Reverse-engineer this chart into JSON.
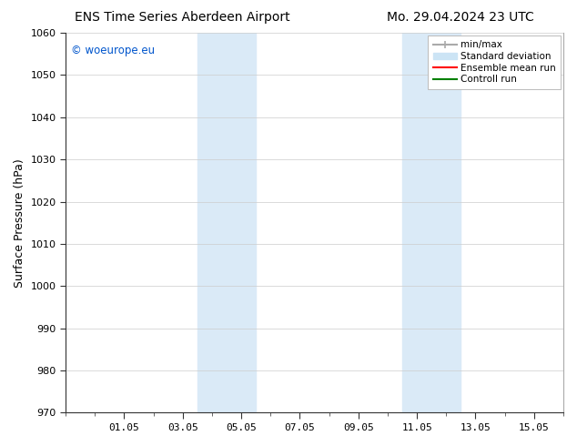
{
  "title_left": "ENS Time Series Aberdeen Airport",
  "title_right": "Mo. 29.04.2024 23 UTC",
  "ylabel": "Surface Pressure (hPa)",
  "ylim": [
    970,
    1060
  ],
  "yticks": [
    970,
    980,
    990,
    1000,
    1010,
    1020,
    1030,
    1040,
    1050,
    1060
  ],
  "xtick_labels": [
    "01.05",
    "03.05",
    "05.05",
    "07.05",
    "09.05",
    "11.05",
    "13.05",
    "15.05"
  ],
  "xtick_positions": [
    2,
    4,
    6,
    8,
    10,
    12,
    14,
    16
  ],
  "xlim": [
    0,
    17
  ],
  "shaded_regions": [
    {
      "start": 4.5,
      "end": 6.5,
      "color": "#daeaf7"
    },
    {
      "start": 11.5,
      "end": 13.5,
      "color": "#daeaf7"
    }
  ],
  "watermark_text": "© woeurope.eu",
  "watermark_color": "#0055cc",
  "background_color": "#ffffff",
  "grid_color": "#cccccc",
  "title_fontsize": 10,
  "label_fontsize": 9,
  "tick_fontsize": 8,
  "legend_minmax_color": "#aaaaaa",
  "legend_std_color": "#cce4f5",
  "legend_mean_color": "red",
  "legend_ctrl_color": "green"
}
